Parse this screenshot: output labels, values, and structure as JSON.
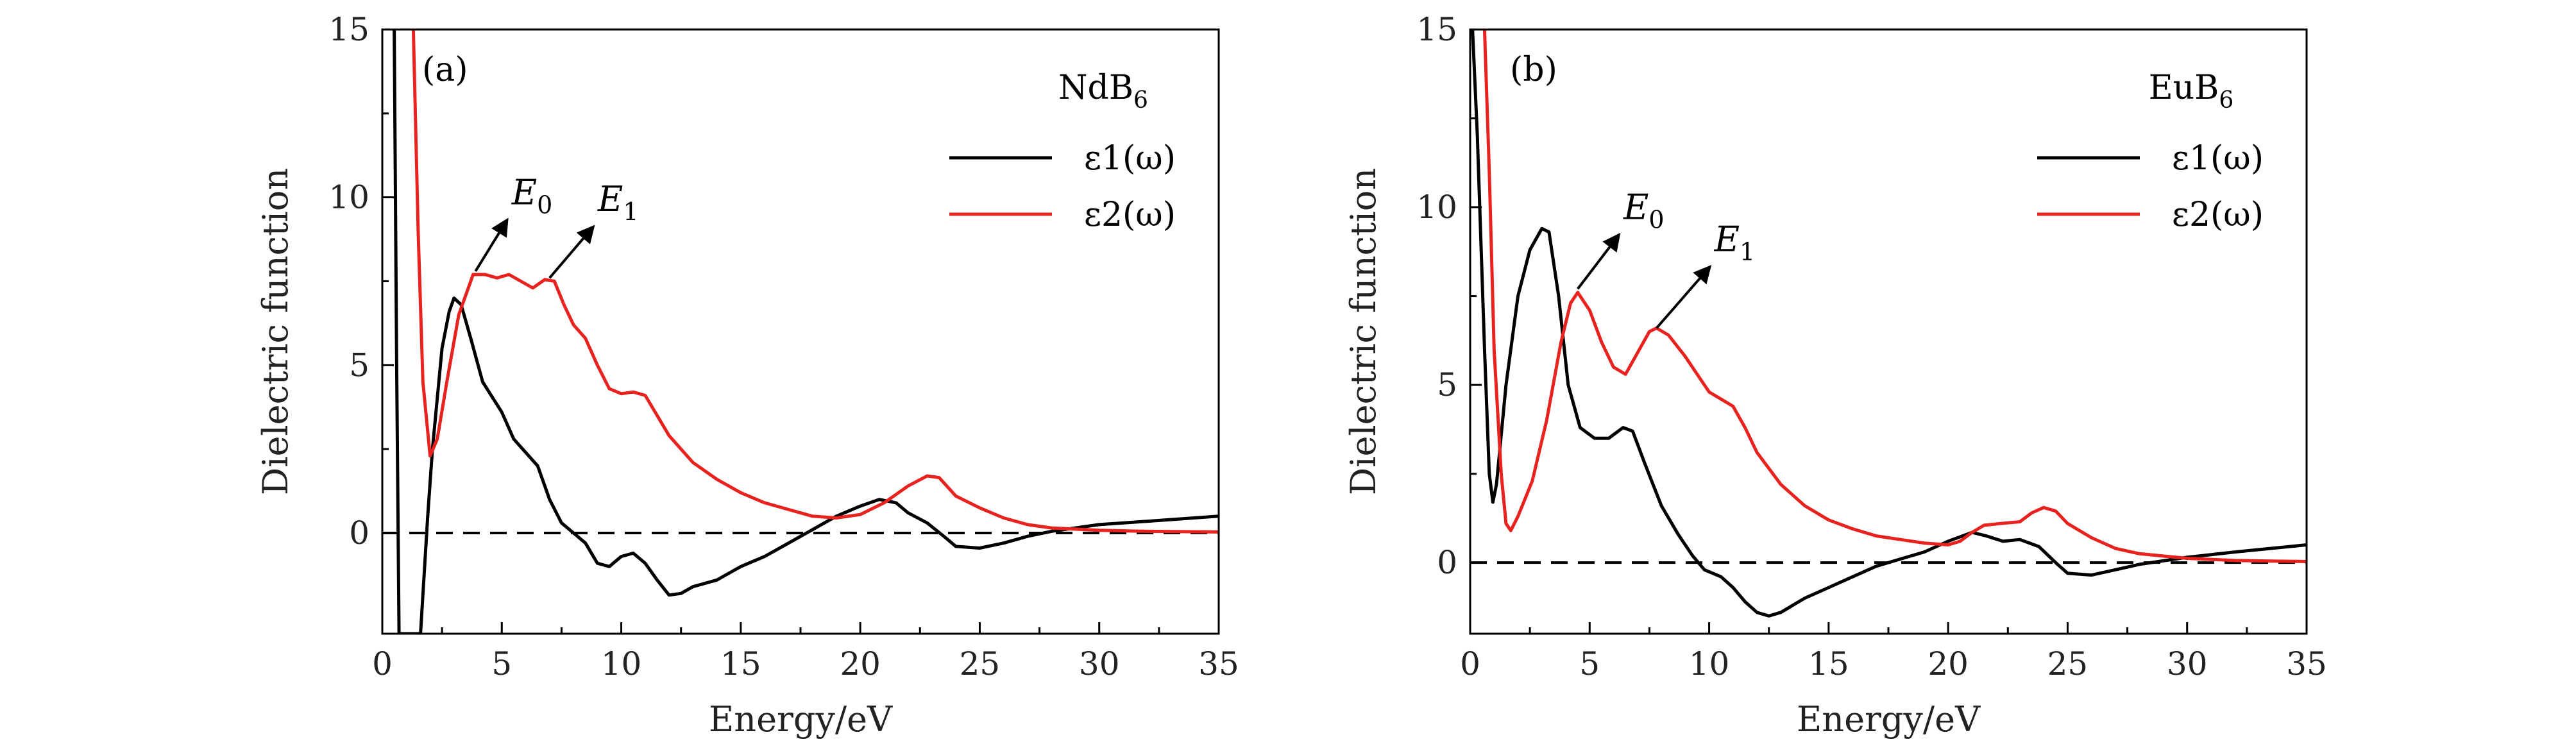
{
  "chart_data": [
    {
      "type": "line",
      "panel_label": "(a)",
      "compound": {
        "base": "NdB",
        "sub": "6"
      },
      "xlabel": "Energy/eV",
      "ylabel": "Dielectric function",
      "xlim": [
        0,
        35
      ],
      "ylim": [
        -3,
        15
      ],
      "xticks": [
        0,
        5,
        10,
        15,
        20,
        25,
        30,
        35
      ],
      "yticks": [
        0,
        5,
        10,
        15
      ],
      "legend_position": "top-right",
      "reference_line": {
        "y": 0,
        "style": "dashed"
      },
      "series": [
        {
          "name": "ε1(ω)",
          "color": "#000000",
          "points": [
            [
              0.5,
              15
            ],
            [
              0.6,
              5
            ],
            [
              0.7,
              -3
            ],
            [
              1.6,
              -3
            ],
            [
              1.9,
              0.5
            ],
            [
              2.1,
              2.5
            ],
            [
              2.5,
              5.5
            ],
            [
              2.8,
              6.6
            ],
            [
              3.0,
              7.0
            ],
            [
              3.3,
              6.8
            ],
            [
              3.7,
              5.8
            ],
            [
              4.2,
              4.5
            ],
            [
              5.0,
              3.6
            ],
            [
              5.5,
              2.8
            ],
            [
              6.0,
              2.4
            ],
            [
              6.5,
              2.0
            ],
            [
              7.0,
              1.0
            ],
            [
              7.5,
              0.3
            ],
            [
              8.0,
              0.0
            ],
            [
              8.5,
              -0.3
            ],
            [
              9.0,
              -0.9
            ],
            [
              9.5,
              -1.0
            ],
            [
              10.0,
              -0.7
            ],
            [
              10.5,
              -0.6
            ],
            [
              11.0,
              -0.9
            ],
            [
              11.5,
              -1.4
            ],
            [
              12.0,
              -1.85
            ],
            [
              12.5,
              -1.8
            ],
            [
              13.0,
              -1.6
            ],
            [
              14.0,
              -1.4
            ],
            [
              15.0,
              -1.0
            ],
            [
              16.0,
              -0.7
            ],
            [
              17.0,
              -0.3
            ],
            [
              18.0,
              0.1
            ],
            [
              19.0,
              0.5
            ],
            [
              20.0,
              0.8
            ],
            [
              20.8,
              1.0
            ],
            [
              21.5,
              0.9
            ],
            [
              22.0,
              0.6
            ],
            [
              22.8,
              0.3
            ],
            [
              23.5,
              -0.1
            ],
            [
              24.0,
              -0.4
            ],
            [
              25.0,
              -0.45
            ],
            [
              26.0,
              -0.3
            ],
            [
              27.0,
              -0.1
            ],
            [
              28.0,
              0.05
            ],
            [
              29.0,
              0.15
            ],
            [
              30.0,
              0.25
            ],
            [
              32.0,
              0.35
            ],
            [
              35.0,
              0.5
            ]
          ]
        },
        {
          "name": "ε2(ω)",
          "color": "#e8231f",
          "points": [
            [
              1.3,
              15
            ],
            [
              1.5,
              9
            ],
            [
              1.7,
              4.5
            ],
            [
              2.0,
              2.3
            ],
            [
              2.3,
              2.8
            ],
            [
              2.7,
              4.5
            ],
            [
              3.2,
              6.5
            ],
            [
              3.8,
              7.7
            ],
            [
              4.3,
              7.7
            ],
            [
              4.8,
              7.6
            ],
            [
              5.3,
              7.7
            ],
            [
              5.8,
              7.5
            ],
            [
              6.3,
              7.3
            ],
            [
              6.8,
              7.55
            ],
            [
              7.2,
              7.5
            ],
            [
              7.6,
              6.8
            ],
            [
              8.0,
              6.2
            ],
            [
              8.5,
              5.8
            ],
            [
              9.0,
              5.0
            ],
            [
              9.5,
              4.3
            ],
            [
              10.0,
              4.15
            ],
            [
              10.5,
              4.2
            ],
            [
              11.0,
              4.1
            ],
            [
              11.5,
              3.5
            ],
            [
              12.0,
              2.9
            ],
            [
              13.0,
              2.1
            ],
            [
              14.0,
              1.6
            ],
            [
              15.0,
              1.2
            ],
            [
              16.0,
              0.9
            ],
            [
              17.0,
              0.7
            ],
            [
              18.0,
              0.5
            ],
            [
              19.0,
              0.45
            ],
            [
              20.0,
              0.55
            ],
            [
              21.0,
              0.9
            ],
            [
              22.0,
              1.4
            ],
            [
              22.8,
              1.7
            ],
            [
              23.3,
              1.65
            ],
            [
              24.0,
              1.1
            ],
            [
              25.0,
              0.75
            ],
            [
              26.0,
              0.45
            ],
            [
              27.0,
              0.25
            ],
            [
              28.0,
              0.15
            ],
            [
              30.0,
              0.08
            ],
            [
              32.0,
              0.05
            ],
            [
              35.0,
              0.03
            ]
          ]
        }
      ],
      "annotations": [
        {
          "text": "E",
          "sub": "0",
          "from": [
            3.9,
            7.8
          ],
          "to": [
            5.2,
            9.3
          ]
        },
        {
          "text": "E",
          "sub": "1",
          "from": [
            7.0,
            7.6
          ],
          "to": [
            8.8,
            9.1
          ]
        }
      ]
    },
    {
      "type": "line",
      "panel_label": "(b)",
      "compound": {
        "base": "EuB",
        "sub": "6"
      },
      "xlabel": "Energy/eV",
      "ylabel": "Dielectric function",
      "xlim": [
        0,
        35
      ],
      "ylim": [
        -2,
        15
      ],
      "xticks": [
        0,
        5,
        10,
        15,
        20,
        25,
        30,
        35
      ],
      "yticks": [
        0,
        5,
        10,
        15
      ],
      "legend_position": "top-right",
      "reference_line": {
        "y": 0,
        "style": "dashed"
      },
      "series": [
        {
          "name": "ε1(ω)",
          "color": "#000000",
          "points": [
            [
              0.1,
              15
            ],
            [
              0.3,
              12
            ],
            [
              0.6,
              6
            ],
            [
              0.8,
              2.5
            ],
            [
              0.95,
              1.7
            ],
            [
              1.1,
              2.2
            ],
            [
              1.5,
              5.0
            ],
            [
              2.0,
              7.5
            ],
            [
              2.5,
              8.8
            ],
            [
              3.0,
              9.4
            ],
            [
              3.3,
              9.3
            ],
            [
              3.7,
              7.5
            ],
            [
              4.1,
              5.0
            ],
            [
              4.6,
              3.8
            ],
            [
              5.2,
              3.5
            ],
            [
              5.8,
              3.5
            ],
            [
              6.4,
              3.8
            ],
            [
              6.8,
              3.7
            ],
            [
              7.3,
              2.8
            ],
            [
              8.0,
              1.6
            ],
            [
              8.7,
              0.8
            ],
            [
              9.3,
              0.2
            ],
            [
              9.8,
              -0.2
            ],
            [
              10.5,
              -0.4
            ],
            [
              11.0,
              -0.7
            ],
            [
              11.5,
              -1.1
            ],
            [
              12.0,
              -1.4
            ],
            [
              12.5,
              -1.5
            ],
            [
              13.0,
              -1.4
            ],
            [
              14.0,
              -1.0
            ],
            [
              15.0,
              -0.7
            ],
            [
              16.0,
              -0.4
            ],
            [
              17.0,
              -0.1
            ],
            [
              18.0,
              0.1
            ],
            [
              19.0,
              0.3
            ],
            [
              20.0,
              0.6
            ],
            [
              21.0,
              0.85
            ],
            [
              21.6,
              0.75
            ],
            [
              22.3,
              0.6
            ],
            [
              23.0,
              0.65
            ],
            [
              23.8,
              0.45
            ],
            [
              24.5,
              0.0
            ],
            [
              25.0,
              -0.3
            ],
            [
              26.0,
              -0.35
            ],
            [
              27.0,
              -0.2
            ],
            [
              28.0,
              -0.05
            ],
            [
              29.0,
              0.05
            ],
            [
              30.0,
              0.15
            ],
            [
              32.0,
              0.3
            ],
            [
              35.0,
              0.5
            ]
          ]
        },
        {
          "name": "ε2(ω)",
          "color": "#e8231f",
          "points": [
            [
              0.6,
              15
            ],
            [
              0.8,
              11
            ],
            [
              1.0,
              6.0
            ],
            [
              1.3,
              2.5
            ],
            [
              1.5,
              1.1
            ],
            [
              1.7,
              0.9
            ],
            [
              2.0,
              1.3
            ],
            [
              2.6,
              2.3
            ],
            [
              3.2,
              4.0
            ],
            [
              3.8,
              6.2
            ],
            [
              4.2,
              7.3
            ],
            [
              4.5,
              7.6
            ],
            [
              5.0,
              7.1
            ],
            [
              5.5,
              6.2
            ],
            [
              6.0,
              5.5
            ],
            [
              6.5,
              5.3
            ],
            [
              7.0,
              5.9
            ],
            [
              7.5,
              6.5
            ],
            [
              7.8,
              6.6
            ],
            [
              8.3,
              6.4
            ],
            [
              9.0,
              5.8
            ],
            [
              9.5,
              5.3
            ],
            [
              10.0,
              4.8
            ],
            [
              10.5,
              4.6
            ],
            [
              11.0,
              4.4
            ],
            [
              11.5,
              3.8
            ],
            [
              12.0,
              3.1
            ],
            [
              13.0,
              2.2
            ],
            [
              14.0,
              1.6
            ],
            [
              15.0,
              1.2
            ],
            [
              16.0,
              0.95
            ],
            [
              17.0,
              0.75
            ],
            [
              18.0,
              0.65
            ],
            [
              19.0,
              0.55
            ],
            [
              20.0,
              0.5
            ],
            [
              20.5,
              0.6
            ],
            [
              21.0,
              0.85
            ],
            [
              21.5,
              1.05
            ],
            [
              22.2,
              1.1
            ],
            [
              23.0,
              1.15
            ],
            [
              23.5,
              1.4
            ],
            [
              24.0,
              1.55
            ],
            [
              24.5,
              1.45
            ],
            [
              25.0,
              1.1
            ],
            [
              26.0,
              0.7
            ],
            [
              27.0,
              0.4
            ],
            [
              28.0,
              0.25
            ],
            [
              30.0,
              0.12
            ],
            [
              32.0,
              0.06
            ],
            [
              35.0,
              0.03
            ]
          ]
        }
      ],
      "annotations": [
        {
          "text": "E",
          "sub": "0",
          "from": [
            4.5,
            7.7
          ],
          "to": [
            6.2,
            9.2
          ]
        },
        {
          "text": "E",
          "sub": "1",
          "from": [
            7.8,
            6.6
          ],
          "to": [
            10.0,
            8.3
          ]
        }
      ]
    }
  ]
}
